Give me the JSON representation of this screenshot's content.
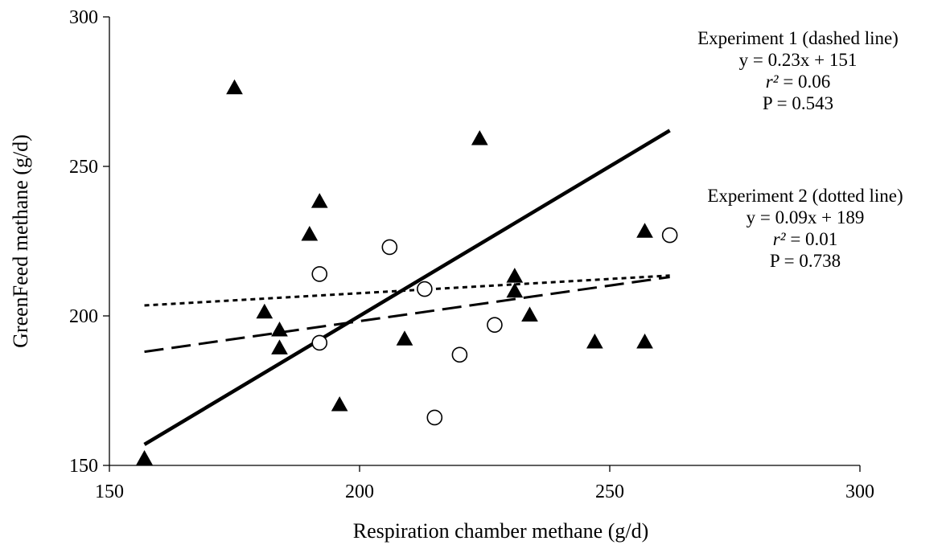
{
  "chart_data": {
    "type": "scatter",
    "xlabel": "Respiration chamber methane (g/d)",
    "ylabel": "GreenFeed methane (g/d)",
    "xlim": [
      150,
      300
    ],
    "ylim": [
      150,
      300
    ],
    "xticks": [
      "150",
      "200",
      "250",
      "300"
    ],
    "yticks": [
      "150",
      "200",
      "250",
      "300"
    ],
    "grid": false,
    "series": [
      {
        "marker": "filled-triangle",
        "color": "#000000",
        "points": [
          [
            157,
            152
          ],
          [
            175,
            276
          ],
          [
            181,
            201
          ],
          [
            184,
            195
          ],
          [
            184,
            189
          ],
          [
            190,
            227
          ],
          [
            192,
            238
          ],
          [
            196,
            170
          ],
          [
            209,
            192
          ],
          [
            224,
            259
          ],
          [
            231,
            213
          ],
          [
            231,
            208
          ],
          [
            234,
            200
          ],
          [
            247,
            191
          ],
          [
            257,
            191
          ],
          [
            257,
            228
          ]
        ]
      },
      {
        "marker": "open-circle",
        "color": "#000000",
        "points": [
          [
            192,
            214
          ],
          [
            192,
            191
          ],
          [
            206,
            223
          ],
          [
            213,
            209
          ],
          [
            215,
            166
          ],
          [
            220,
            187
          ],
          [
            227,
            197
          ],
          [
            262,
            227
          ]
        ]
      }
    ],
    "lines": [
      {
        "style": "solid",
        "x": [
          157,
          262
        ],
        "y": [
          157,
          262
        ]
      },
      {
        "style": "dashed",
        "x": [
          157,
          262
        ],
        "y": [
          188,
          213
        ]
      },
      {
        "style": "dotted",
        "x": [
          157,
          262
        ],
        "y": [
          203.5,
          213.5
        ]
      }
    ],
    "annotations": {
      "exp1": {
        "title": "Experiment 1 (dashed line)",
        "equation": "y = 0.23x + 151",
        "r2_symbol": "r²",
        "r2_value": " = 0.06",
        "p": "P = 0.543"
      },
      "exp2": {
        "title": "Experiment 2 (dotted line)",
        "equation": "y = 0.09x + 189",
        "r2_symbol": "r²",
        "r2_value": " = 0.01",
        "p": "P = 0.738"
      }
    }
  }
}
